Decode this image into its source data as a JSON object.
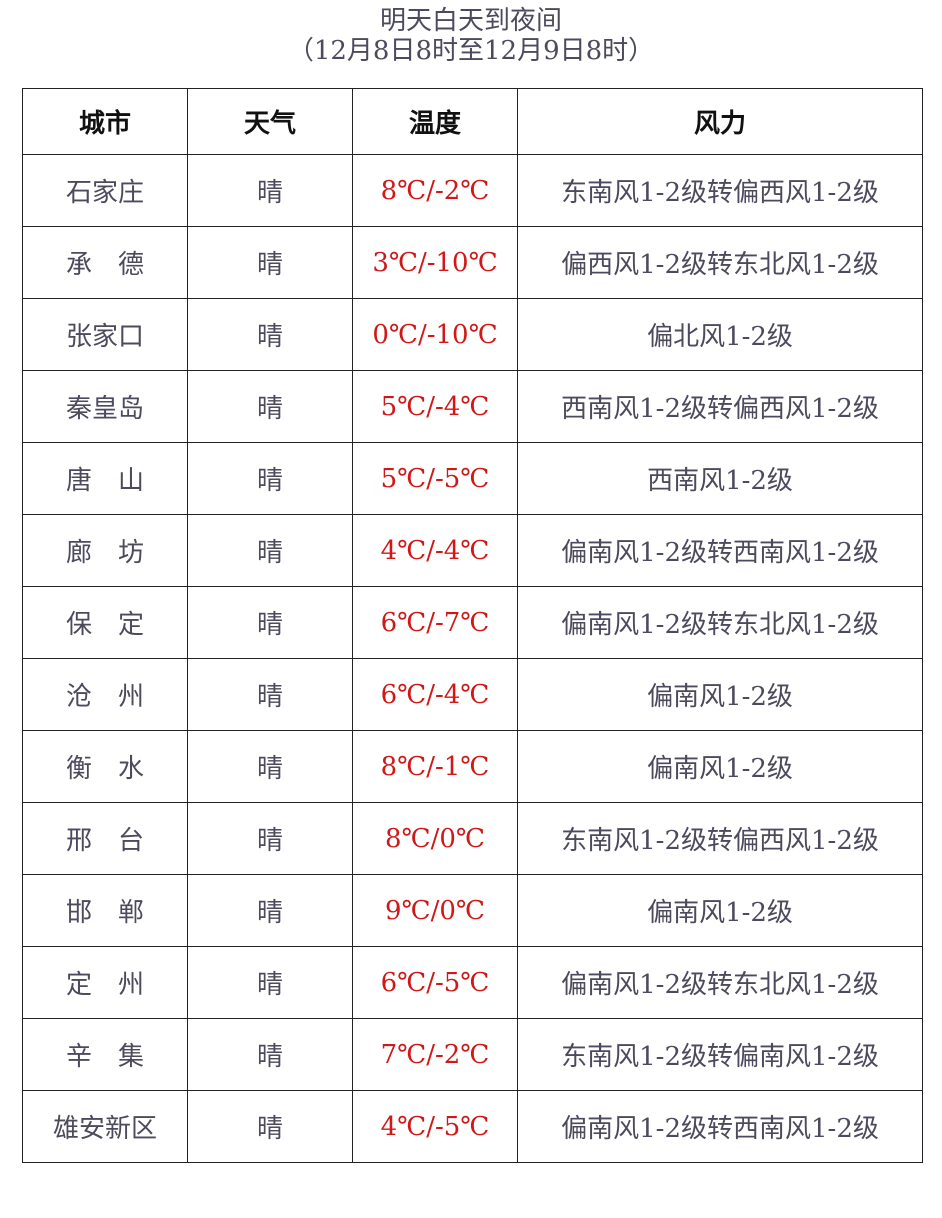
{
  "title": "明天白天到夜间",
  "subtitle": "（12月8日8时至12月9日8时）",
  "headers": [
    "城市",
    "天气",
    "温度",
    "风力"
  ],
  "rows": [
    [
      "石家庄",
      "晴",
      "8℃/-2℃",
      "东南风1-2级转偏西风1-2级"
    ],
    [
      "承　德",
      "晴",
      "3℃/-10℃",
      "偏西风1-2级转东北风1-2级"
    ],
    [
      "张家口",
      "晴",
      "0℃/-10℃",
      "偏北风1-2级"
    ],
    [
      "秦皇岛",
      "晴",
      "5℃/-4℃",
      "西南风1-2级转偏西风1-2级"
    ],
    [
      "唐　山",
      "晴",
      "5℃/-5℃",
      "西南风1-2级"
    ],
    [
      "廊　坊",
      "晴",
      "4℃/-4℃",
      "偏南风1-2级转西南风1-2级"
    ],
    [
      "保　定",
      "晴",
      "6℃/-7℃",
      "偏南风1-2级转东北风1-2级"
    ],
    [
      "沧　州",
      "晴",
      "6℃/-4℃",
      "偏南风1-2级"
    ],
    [
      "衡　水",
      "晴",
      "8℃/-1℃",
      "偏南风1-2级"
    ],
    [
      "邢　台",
      "晴",
      "8℃/0℃",
      "东南风1-2级转偏西风1-2级"
    ],
    [
      "邯　郸",
      "晴",
      "9℃/0℃",
      "偏南风1-2级"
    ],
    [
      "定　州",
      "晴",
      "6℃/-5℃",
      "偏南风1-2级转东北风1-2级"
    ],
    [
      "辛　集",
      "晴",
      "7℃/-2℃",
      "东南风1-2级转偏南风1-2级"
    ],
    [
      "雄安新区",
      "晴",
      "4℃/-5℃",
      "偏南风1-2级转西南风1-2级"
    ]
  ],
  "colors": {
    "text": "#4e4a5e",
    "temperature": "#d01818"
  }
}
